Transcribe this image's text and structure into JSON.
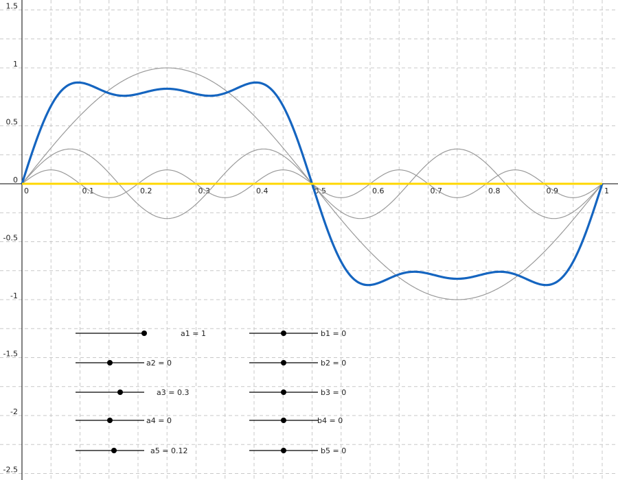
{
  "x_axis": {
    "ticks": [
      0,
      0.1,
      0.2,
      0.3,
      0.4,
      0.5,
      0.6,
      0.7,
      0.8,
      0.9,
      1
    ]
  },
  "y_axis": {
    "ticks": [
      1.5,
      1,
      0.5,
      0,
      -0.5,
      -1,
      -1.5,
      -2,
      -2.5
    ]
  },
  "slider_range": [
    -1,
    1
  ],
  "a_sliders": [
    {
      "label": "a1 = 1",
      "value": 1
    },
    {
      "label": "a2 = 0",
      "value": 0
    },
    {
      "label": "a3 = 0.3",
      "value": 0.3
    },
    {
      "label": "a4 = 0",
      "value": 0
    },
    {
      "label": "a5 = 0.12",
      "value": 0.12
    }
  ],
  "b_sliders": [
    {
      "label": "b1 = 0",
      "value": 0
    },
    {
      "label": "b2 = 0",
      "value": 0
    },
    {
      "label": "b3 = 0",
      "value": 0
    },
    {
      "label": "b4 = 0",
      "value": 0
    },
    {
      "label": "b5 = 0",
      "value": 0
    }
  ]
}
